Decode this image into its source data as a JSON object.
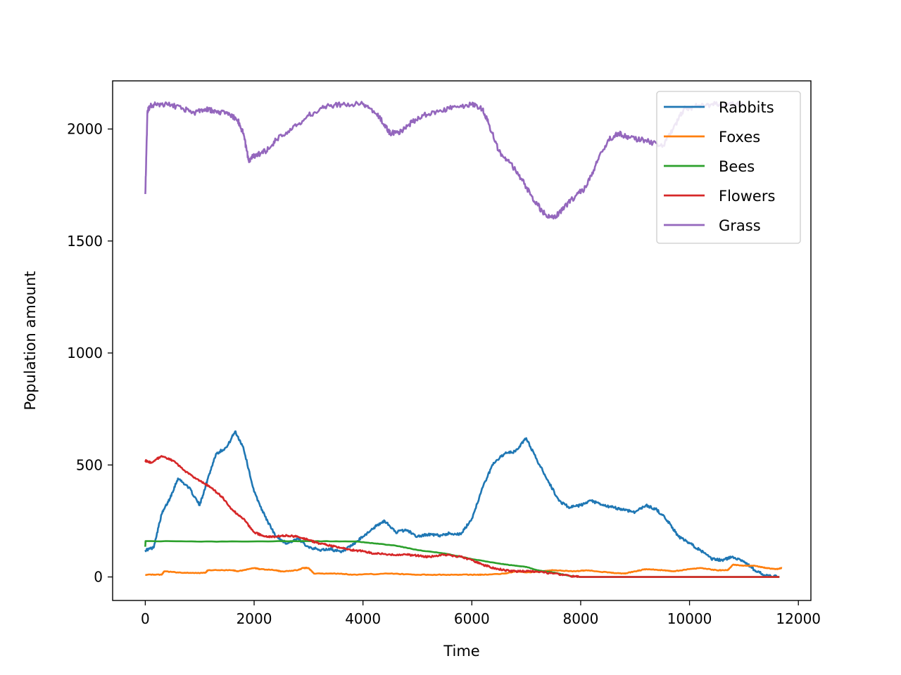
{
  "chart_data": {
    "type": "line",
    "title": "",
    "xlabel": "Time",
    "ylabel": "Population amount",
    "xlim": [
      -600,
      12230
    ],
    "ylim": [
      -105,
      2215
    ],
    "xticks": [
      0,
      2000,
      4000,
      6000,
      8000,
      10000,
      12000
    ],
    "xtick_labels": [
      "0",
      "2000",
      "4000",
      "6000",
      "8000",
      "10000",
      "12000"
    ],
    "yticks": [
      0,
      500,
      1000,
      1500,
      2000
    ],
    "ytick_labels": [
      "0",
      "500",
      "1000",
      "1500",
      "2000"
    ],
    "grid": false,
    "legend_position": "top-right",
    "series": [
      {
        "name": "Rabbits",
        "color": "#1f77b4",
        "x": [
          0,
          150,
          300,
          450,
          600,
          800,
          1000,
          1150,
          1300,
          1500,
          1650,
          1800,
          2000,
          2200,
          2400,
          2600,
          2800,
          3000,
          3200,
          3400,
          3600,
          3800,
          4000,
          4200,
          4400,
          4600,
          4800,
          5000,
          5200,
          5400,
          5600,
          5800,
          6000,
          6200,
          6400,
          6600,
          6800,
          7000,
          7200,
          7400,
          7600,
          7800,
          8000,
          8200,
          8400,
          8600,
          8800,
          9000,
          9200,
          9400,
          9600,
          9800,
          10000,
          10200,
          10400,
          10600,
          10800,
          11000,
          11200,
          11400,
          11650
        ],
        "y": [
          120,
          130,
          280,
          350,
          440,
          400,
          320,
          440,
          550,
          580,
          650,
          580,
          380,
          270,
          180,
          150,
          170,
          135,
          120,
          125,
          110,
          140,
          180,
          220,
          250,
          200,
          210,
          180,
          190,
          185,
          195,
          190,
          260,
          400,
          510,
          550,
          560,
          620,
          520,
          430,
          340,
          310,
          320,
          340,
          320,
          310,
          300,
          290,
          320,
          300,
          250,
          180,
          150,
          120,
          80,
          75,
          90,
          70,
          30,
          5,
          0
        ]
      },
      {
        "name": "Foxes",
        "color": "#ff7f0e",
        "x": [
          0,
          300,
          350,
          700,
          1100,
          1150,
          1600,
          1700,
          2000,
          2100,
          2400,
          2500,
          2800,
          2900,
          3000,
          3100,
          3600,
          3800,
          4500,
          5000,
          5500,
          6000,
          6200,
          6600,
          6800,
          7000,
          7300,
          7500,
          7900,
          8100,
          8500,
          8800,
          9000,
          9200,
          9500,
          9700,
          10000,
          10200,
          10500,
          10700,
          10800,
          11000,
          11200,
          11400,
          11600,
          11700
        ],
        "y": [
          10,
          10,
          25,
          18,
          18,
          30,
          30,
          25,
          40,
          35,
          30,
          25,
          30,
          40,
          40,
          15,
          15,
          10,
          15,
          10,
          10,
          10,
          10,
          15,
          25,
          20,
          25,
          30,
          25,
          30,
          20,
          15,
          25,
          35,
          30,
          25,
          35,
          40,
          30,
          30,
          55,
          50,
          50,
          40,
          35,
          40
        ]
      },
      {
        "name": "Bees",
        "color": "#2ca02c",
        "x": [
          0,
          5,
          1500,
          3000,
          3900,
          4200,
          4600,
          5000,
          5500,
          6000,
          6500,
          6800,
          7000,
          7200,
          7500,
          7800,
          8000,
          11650
        ],
        "y": [
          135,
          160,
          158,
          160,
          158,
          150,
          140,
          120,
          105,
          80,
          60,
          50,
          45,
          30,
          20,
          5,
          0,
          0
        ]
      },
      {
        "name": "Flowers",
        "color": "#d62728",
        "x": [
          0,
          100,
          300,
          500,
          800,
          1000,
          1200,
          1400,
          1600,
          1800,
          2000,
          2200,
          2400,
          2600,
          2800,
          3000,
          3200,
          3400,
          3600,
          3800,
          4000,
          4200,
          4500,
          4800,
          5000,
          5200,
          5500,
          5800,
          6000,
          6200,
          6400,
          6600,
          6800,
          7000,
          7200,
          7500,
          7800,
          8000,
          11650
        ],
        "y": [
          520,
          510,
          540,
          520,
          460,
          430,
          400,
          360,
          300,
          260,
          200,
          180,
          180,
          185,
          180,
          165,
          150,
          140,
          130,
          120,
          115,
          105,
          100,
          100,
          95,
          90,
          100,
          90,
          75,
          55,
          40,
          30,
          25,
          25,
          25,
          15,
          5,
          0,
          0
        ]
      },
      {
        "name": "Grass",
        "color": "#9467bd",
        "x": [
          0,
          40,
          80,
          200,
          400,
          700,
          900,
          1100,
          1300,
          1500,
          1700,
          1800,
          1900,
          2000,
          2200,
          2400,
          2700,
          3000,
          3300,
          3600,
          4000,
          4200,
          4400,
          4500,
          4700,
          4900,
          5100,
          5400,
          5700,
          6000,
          6200,
          6300,
          6500,
          6700,
          6900,
          7100,
          7300,
          7500,
          7700,
          7900,
          8100,
          8300,
          8500,
          8700,
          8900,
          9200,
          9500,
          9700,
          9900,
          10100,
          10400,
          10700,
          11000
        ],
        "y": [
          1710,
          2080,
          2100,
          2110,
          2110,
          2090,
          2070,
          2090,
          2080,
          2070,
          2040,
          1980,
          1860,
          1880,
          1900,
          1950,
          2000,
          2060,
          2100,
          2110,
          2110,
          2080,
          2020,
          1980,
          1990,
          2030,
          2060,
          2080,
          2100,
          2110,
          2090,
          2030,
          1900,
          1850,
          1780,
          1700,
          1630,
          1600,
          1650,
          1700,
          1740,
          1850,
          1950,
          1980,
          1960,
          1950,
          1920,
          2000,
          2090,
          2100,
          2110,
          2110,
          2110
        ]
      }
    ]
  }
}
